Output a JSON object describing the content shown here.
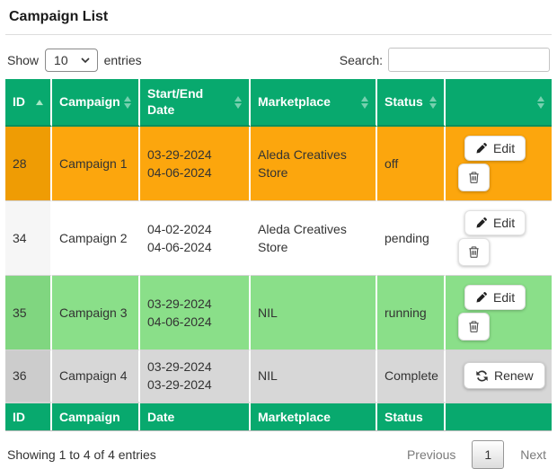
{
  "page": {
    "title": "Campaign List"
  },
  "controls": {
    "show_label": "Show",
    "page_length": "10",
    "entries_label": "entries",
    "search_label": "Search:",
    "search_value": ""
  },
  "colors": {
    "header_green": "#08a96e",
    "header_green_dark": "#0a8f5d"
  },
  "table": {
    "headers": [
      {
        "key": "id",
        "label": "ID",
        "sort": "asc"
      },
      {
        "key": "campaign",
        "label": "Campaign",
        "sort": "both"
      },
      {
        "key": "date",
        "label": "Start/End Date",
        "sort": "both"
      },
      {
        "key": "marketplace",
        "label": "Marketplace",
        "sort": "both"
      },
      {
        "key": "status",
        "label": "Status",
        "sort": "both"
      },
      {
        "key": "actions",
        "label": "",
        "sort": "both"
      }
    ],
    "footers": [
      "ID",
      "Campaign",
      "Date",
      "Marketplace",
      "Status",
      ""
    ],
    "rows": [
      {
        "id": "28",
        "campaign": "Campaign 1",
        "start_date": "03-29-2024",
        "end_date": "04-06-2024",
        "marketplace": "Aleda Creatives Store",
        "status": "off",
        "colors": {
          "bg": "#fca60d",
          "bg_sorted": "#ef9c04"
        },
        "actions": [
          {
            "type": "edit",
            "label": "Edit",
            "icon": "pencil-icon"
          },
          {
            "type": "delete",
            "label": "",
            "icon": "trash-icon"
          }
        ]
      },
      {
        "id": "34",
        "campaign": "Campaign 2",
        "start_date": "04-02-2024",
        "end_date": "04-06-2024",
        "marketplace": "Aleda Creatives Store",
        "status": "pending",
        "colors": {
          "bg": "#ffffff",
          "bg_sorted": "#f6f6f6"
        },
        "actions": [
          {
            "type": "edit",
            "label": "Edit",
            "icon": "pencil-icon"
          },
          {
            "type": "delete",
            "label": "",
            "icon": "trash-icon"
          }
        ]
      },
      {
        "id": "35",
        "campaign": "Campaign 3",
        "start_date": "03-29-2024",
        "end_date": "04-06-2024",
        "marketplace": "NIL",
        "status": "running",
        "colors": {
          "bg": "#8adf89",
          "bg_sorted": "#80d680"
        },
        "actions": [
          {
            "type": "edit",
            "label": "Edit",
            "icon": "pencil-icon"
          },
          {
            "type": "delete",
            "label": "",
            "icon": "trash-icon"
          }
        ]
      },
      {
        "id": "36",
        "campaign": "Campaign 4",
        "start_date": "03-29-2024",
        "end_date": "03-29-2024",
        "marketplace": "NIL",
        "status": "Complete",
        "colors": {
          "bg": "#d7d7d7",
          "bg_sorted": "#cccccc"
        },
        "actions": [
          {
            "type": "renew",
            "label": "Renew",
            "icon": "refresh-icon"
          }
        ]
      }
    ]
  },
  "pagination": {
    "info": "Showing 1 to 4 of 4 entries",
    "previous_label": "Previous",
    "current_page": "1",
    "next_label": "Next"
  }
}
